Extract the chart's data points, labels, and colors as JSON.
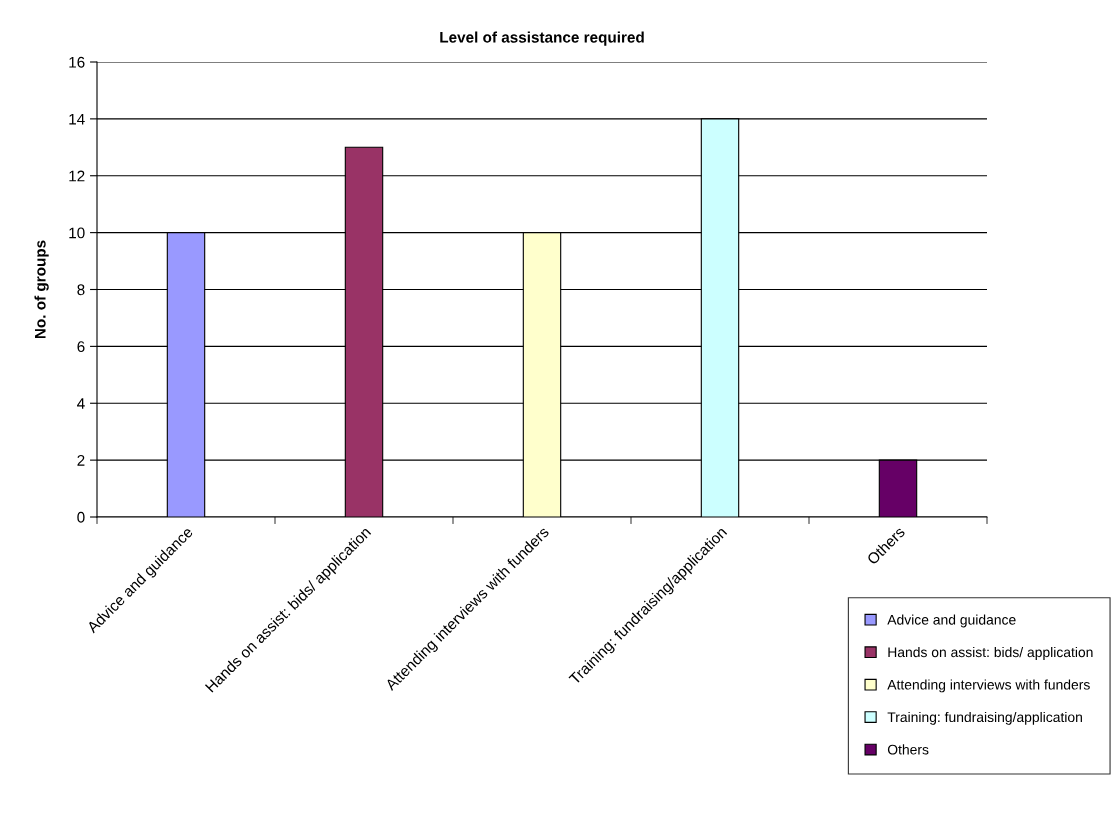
{
  "chart_data": {
    "type": "bar",
    "title": "Level of assistance required",
    "ylabel": "No. of groups",
    "categories": [
      "Advice and guidance",
      "Hands on assist: bids/ application",
      "Attending interviews with funders",
      "Training: fundraising/application",
      "Others"
    ],
    "series": [
      {
        "name": "Advice and guidance",
        "color": "#9999ff",
        "values": [
          10,
          null,
          null,
          null,
          null
        ]
      },
      {
        "name": "Hands on assist: bids/ application",
        "color": "#993366",
        "values": [
          null,
          13,
          null,
          null,
          null
        ]
      },
      {
        "name": "Attending interviews with funders",
        "color": "#ffffcc",
        "values": [
          null,
          null,
          10,
          null,
          null
        ]
      },
      {
        "name": "Training: fundraising/application",
        "color": "#ccffff",
        "values": [
          null,
          null,
          null,
          14,
          null
        ]
      },
      {
        "name": "Others",
        "color": "#660066",
        "values": [
          null,
          null,
          null,
          null,
          2
        ]
      }
    ],
    "ylim": [
      0,
      16
    ],
    "yticks": [
      0,
      2,
      4,
      6,
      8,
      10,
      12,
      14,
      16
    ],
    "grid": "y",
    "legend": "bottom right"
  }
}
